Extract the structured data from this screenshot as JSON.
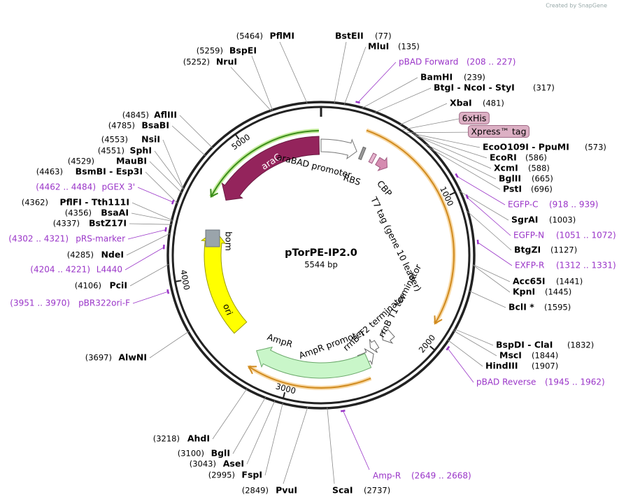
{
  "watermark": "Created by SnapGene",
  "map": {
    "name": "pTorPE-IP2.0",
    "size": "5544 bp",
    "ruler": [
      "1000",
      "2000",
      "3000",
      "4000",
      "5000"
    ]
  },
  "features": [
    "araC",
    "araBAD promoter",
    "RBS",
    "CBP",
    "T7 tag (gene 10 leader)",
    "rrnB T1 terminator",
    "rrnB T2 terminator",
    "AmpR promoter",
    "AmpR",
    "ori",
    "bom",
    "6xHis",
    "Xpress™ tag"
  ],
  "enzyme_sites": [
    {
      "name": "PflMI",
      "location": "(5464)"
    },
    {
      "name": "BstEII",
      "location": "(77)"
    },
    {
      "name": "MluI",
      "location": "(135)"
    },
    {
      "name": "BamHI",
      "location": "(239)"
    },
    {
      "name": "BtgI - NcoI - StyI",
      "location": "(317)"
    },
    {
      "name": "XbaI",
      "location": "(481)"
    },
    {
      "name": "EcoO109I - PpuMI",
      "location": "(573)"
    },
    {
      "name": "EcoRI",
      "location": "(586)"
    },
    {
      "name": "XcmI",
      "location": "(588)"
    },
    {
      "name": "BglII",
      "location": "(665)"
    },
    {
      "name": "PstI",
      "location": "(696)"
    },
    {
      "name": "SgrAI",
      "location": "(1003)"
    },
    {
      "name": "BtgZI",
      "location": "(1127)"
    },
    {
      "name": "Acc65I",
      "location": "(1441)"
    },
    {
      "name": "KpnI",
      "location": "(1445)"
    },
    {
      "name": "BclI *",
      "location": "(1595)"
    },
    {
      "name": "BspDI - ClaI",
      "location": "(1832)"
    },
    {
      "name": "MscI",
      "location": "(1844)"
    },
    {
      "name": "HindIII",
      "location": "(1907)"
    },
    {
      "name": "ScaI",
      "location": "(2737)"
    },
    {
      "name": "PvuI",
      "location": "(2849)"
    },
    {
      "name": "FspI",
      "location": "(2995)"
    },
    {
      "name": "AseI",
      "location": "(3043)"
    },
    {
      "name": "BglI",
      "location": "(3100)"
    },
    {
      "name": "AhdI",
      "location": "(3218)"
    },
    {
      "name": "AlwNI",
      "location": "(3697)"
    },
    {
      "name": "PciI",
      "location": "(4106)"
    },
    {
      "name": "NdeI",
      "location": "(4285)"
    },
    {
      "name": "BstZ17I",
      "location": "(4337)"
    },
    {
      "name": "BsaAI",
      "location": "(4356)"
    },
    {
      "name": "PflFI - Tth111I",
      "location": "(4362)"
    },
    {
      "name": "BsmBI - Esp3I",
      "location": "(4463)"
    },
    {
      "name": "MauBI",
      "location": "(4529)"
    },
    {
      "name": "SphI",
      "location": "(4551)"
    },
    {
      "name": "NsiI",
      "location": "(4553)"
    },
    {
      "name": "BsaBI",
      "location": "(4785)"
    },
    {
      "name": "AflIII",
      "location": "(4845)"
    },
    {
      "name": "NruI",
      "location": "(5252)"
    },
    {
      "name": "BspEI",
      "location": "(5259)"
    }
  ],
  "primers": [
    {
      "name": "pBAD Forward",
      "location": "(208 .. 227)"
    },
    {
      "name": "EGFP-C",
      "location": "(918 .. 939)"
    },
    {
      "name": "EGFP-N",
      "location": "(1051 .. 1072)"
    },
    {
      "name": "EXFP-R",
      "location": "(1312 .. 1331)"
    },
    {
      "name": "pBAD Reverse",
      "location": "(1945 .. 1962)"
    },
    {
      "name": "Amp-R",
      "location": "(2649 .. 2668)"
    },
    {
      "name": "pBR322ori-F",
      "location": "(3951 .. 3970)"
    },
    {
      "name": "L4440",
      "location": "(4204 .. 4221)"
    },
    {
      "name": "pRS-marker",
      "location": "(4302 .. 4321)"
    },
    {
      "name": "pGEX 3'",
      "location": "(4462 .. 4484)"
    }
  ]
}
